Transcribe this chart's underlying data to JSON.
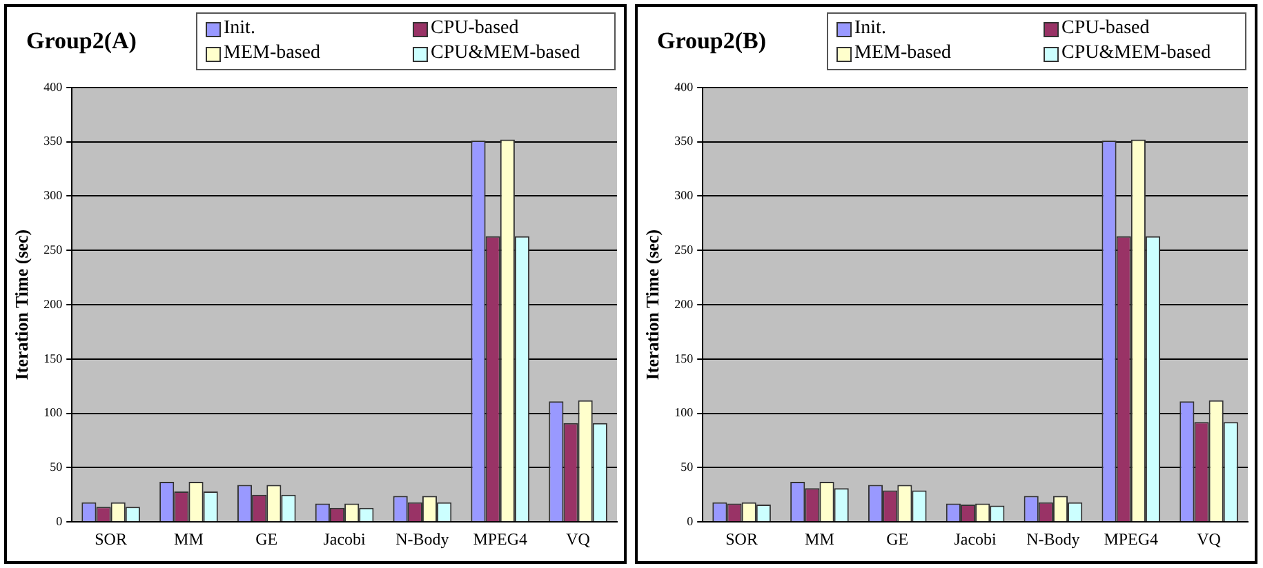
{
  "chart_data": [
    {
      "type": "bar",
      "title": "Group2(A)",
      "ylabel": "Iteration Time (sec)",
      "categories": [
        "SOR",
        "MM",
        "GE",
        "Jacobi",
        "N-Body",
        "MPEG4",
        "VQ"
      ],
      "ylim": [
        0,
        400
      ],
      "yticks": [
        0,
        50,
        100,
        150,
        200,
        250,
        300,
        350,
        400
      ],
      "grid": "y",
      "legend": "top right",
      "series": [
        {
          "name": "Init.",
          "color": "#9999ff",
          "values": [
            18,
            37,
            34,
            17,
            24,
            351,
            111
          ]
        },
        {
          "name": "CPU-based",
          "color": "#993366",
          "values": [
            14,
            28,
            25,
            13,
            18,
            263,
            91
          ]
        },
        {
          "name": "MEM-based",
          "color": "#ffffcc",
          "values": [
            18,
            37,
            34,
            17,
            24,
            352,
            112
          ]
        },
        {
          "name": "CPU&MEM-based",
          "color": "#ccffff",
          "values": [
            14,
            28,
            25,
            13,
            18,
            263,
            91
          ]
        }
      ]
    },
    {
      "type": "bar",
      "title": "Group2(B)",
      "ylabel": "Iteration Time (sec)",
      "categories": [
        "SOR",
        "MM",
        "GE",
        "Jacobi",
        "N-Body",
        "MPEG4",
        "VQ"
      ],
      "ylim": [
        0,
        400
      ],
      "yticks": [
        0,
        50,
        100,
        150,
        200,
        250,
        300,
        350,
        400
      ],
      "grid": "y",
      "legend": "top right",
      "series": [
        {
          "name": "Init.",
          "color": "#9999ff",
          "values": [
            18,
            37,
            34,
            17,
            24,
            351,
            111
          ]
        },
        {
          "name": "CPU-based",
          "color": "#993366",
          "values": [
            17,
            31,
            29,
            16,
            18,
            263,
            92
          ]
        },
        {
          "name": "MEM-based",
          "color": "#ffffcc",
          "values": [
            18,
            37,
            34,
            17,
            24,
            352,
            112
          ]
        },
        {
          "name": "CPU&MEM-based",
          "color": "#ccffff",
          "values": [
            16,
            31,
            29,
            15,
            18,
            263,
            92
          ]
        }
      ]
    }
  ]
}
